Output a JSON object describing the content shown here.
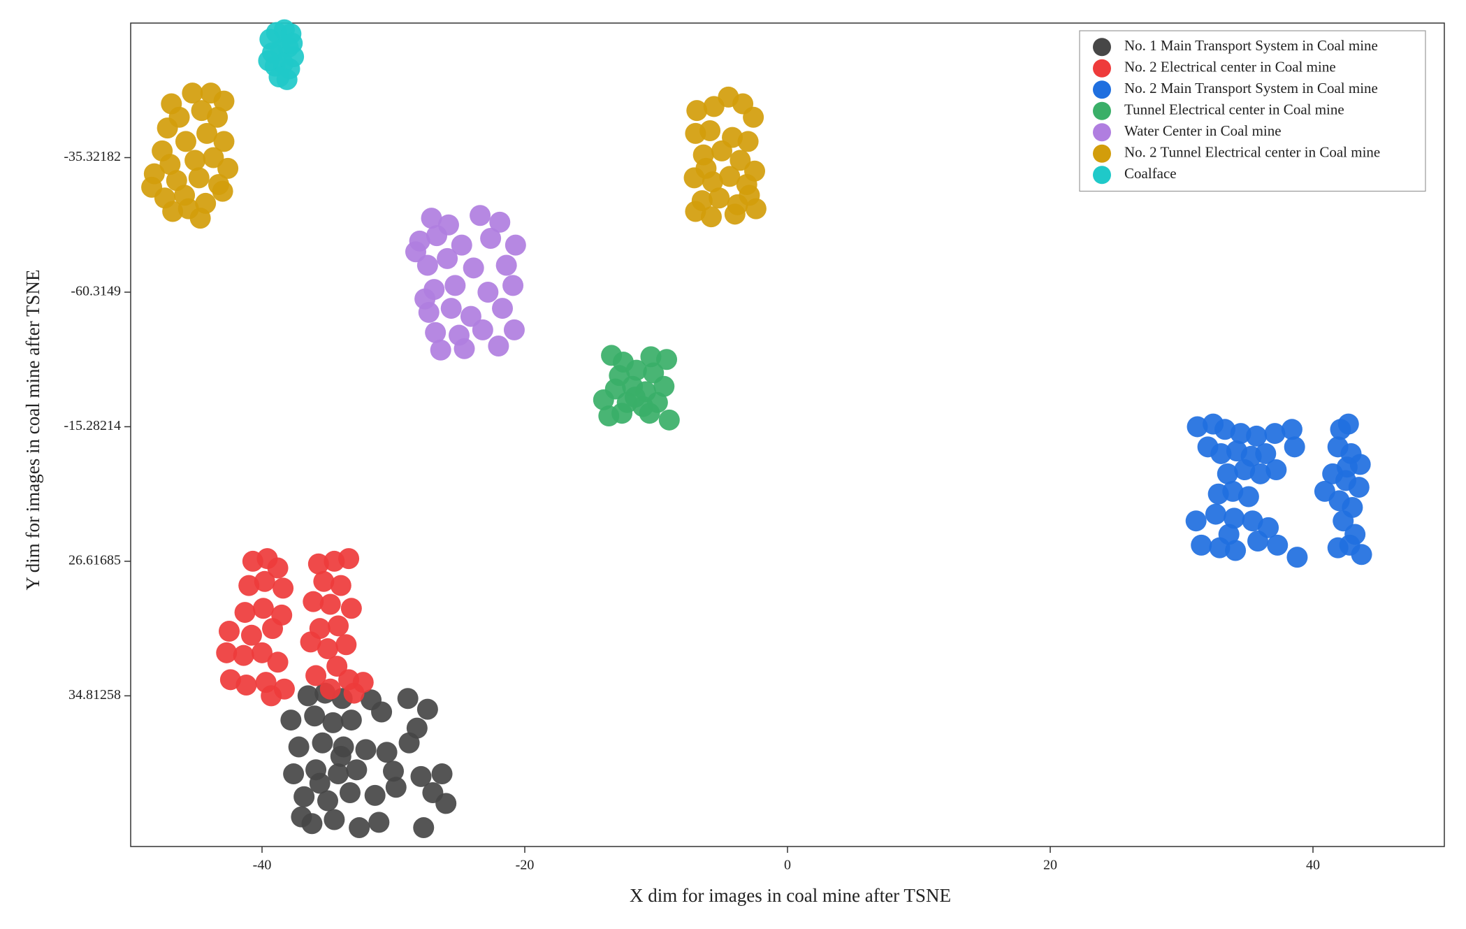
{
  "chart_data": {
    "type": "scatter",
    "xlabel": "X dim for images in  coal mine after TSNE",
    "ylabel": "Y dim for images in  coal mine after TSNE",
    "xlim": [
      -50,
      50
    ],
    "xticks": [
      -40,
      -20,
      0,
      20,
      40
    ],
    "ylim": [
      -0.12,
      6
    ],
    "yticks": [
      {
        "value": 1,
        "label": "34.81258"
      },
      {
        "value": 2,
        "label": "26.61685"
      },
      {
        "value": 3,
        "label": "-15.28214"
      },
      {
        "value": 4,
        "label": "-60.3149"
      },
      {
        "value": 5,
        "label": "-35.32182"
      }
    ],
    "legend": "upper right",
    "series": [
      {
        "name": "No. 1 Main Transport System in Coal mine",
        "color": "#474747",
        "x": [
          -36.5,
          -35.2,
          -33.9,
          -31.7,
          -28.9,
          -27.4,
          -37.8,
          -36.0,
          -34.6,
          -33.2,
          -30.9,
          -28.2,
          -37.2,
          -35.4,
          -33.8,
          -32.1,
          -30.5,
          -28.8,
          -37.6,
          -35.9,
          -34.2,
          -32.8,
          -30.0,
          -27.9,
          -26.3,
          -36.8,
          -35.0,
          -33.3,
          -31.4,
          -29.8,
          -27.0,
          -26.0,
          -36.2,
          -34.5,
          -32.6,
          -31.1,
          -27.7,
          -37.0,
          -35.6,
          -34.0
        ],
        "values": [
          1.0,
          1.02,
          0.98,
          0.97,
          0.98,
          0.9,
          0.82,
          0.85,
          0.8,
          0.82,
          0.88,
          0.76,
          0.62,
          0.65,
          0.62,
          0.6,
          0.58,
          0.65,
          0.42,
          0.45,
          0.42,
          0.45,
          0.44,
          0.4,
          0.42,
          0.25,
          0.22,
          0.28,
          0.26,
          0.32,
          0.28,
          0.2,
          0.05,
          0.08,
          0.02,
          0.06,
          0.02,
          0.1,
          0.35,
          0.55
        ]
      },
      {
        "name": "No. 2 Electrical center in Coal mine",
        "color": "#ee3b3b",
        "x": [
          -40.7,
          -39.6,
          -38.8,
          -41.0,
          -39.8,
          -38.4,
          -41.3,
          -39.9,
          -38.5,
          -42.5,
          -40.8,
          -39.2,
          -42.7,
          -41.4,
          -40.0,
          -38.8,
          -42.4,
          -41.2,
          -39.7,
          -39.3,
          -38.3,
          -35.7,
          -34.5,
          -33.4,
          -35.3,
          -34.0,
          -36.1,
          -34.8,
          -33.2,
          -35.6,
          -34.2,
          -36.3,
          -35.0,
          -33.6,
          -34.3,
          -35.9,
          -33.4,
          -34.8,
          -33.0,
          -32.3
        ],
        "values": [
          2.0,
          2.02,
          1.95,
          1.82,
          1.85,
          1.8,
          1.62,
          1.65,
          1.6,
          1.48,
          1.45,
          1.5,
          1.32,
          1.3,
          1.32,
          1.25,
          1.12,
          1.08,
          1.1,
          1.0,
          1.05,
          1.98,
          2.0,
          2.02,
          1.85,
          1.82,
          1.7,
          1.68,
          1.65,
          1.5,
          1.52,
          1.4,
          1.35,
          1.38,
          1.22,
          1.15,
          1.12,
          1.05,
          1.02,
          1.1
        ]
      },
      {
        "name": "No. 2 Main Transport System in Coal mine",
        "color": "#1f6fdf",
        "x": [
          31.2,
          32.4,
          33.3,
          34.5,
          35.7,
          37.1,
          38.4,
          32.0,
          33.0,
          34.2,
          35.3,
          36.4,
          38.6,
          33.5,
          34.8,
          36.0,
          37.2,
          32.8,
          33.9,
          35.1,
          31.1,
          32.6,
          34.0,
          35.4,
          36.6,
          31.5,
          32.9,
          34.1,
          35.8,
          37.3,
          38.8,
          33.6,
          42.1,
          42.7,
          41.9,
          42.9,
          43.6,
          41.5,
          42.5,
          43.5,
          40.9,
          42.0,
          43.0,
          42.3,
          43.2,
          42.8,
          41.9,
          43.7,
          42.6
        ],
        "values": [
          3.0,
          3.02,
          2.98,
          2.95,
          2.93,
          2.95,
          2.98,
          2.85,
          2.8,
          2.82,
          2.78,
          2.8,
          2.85,
          2.65,
          2.68,
          2.65,
          2.68,
          2.5,
          2.52,
          2.48,
          2.3,
          2.35,
          2.32,
          2.3,
          2.25,
          2.12,
          2.1,
          2.08,
          2.15,
          2.12,
          2.03,
          2.2,
          2.98,
          3.02,
          2.85,
          2.8,
          2.72,
          2.65,
          2.6,
          2.55,
          2.52,
          2.45,
          2.4,
          2.3,
          2.2,
          2.12,
          2.1,
          2.05,
          2.7
        ]
      },
      {
        "name": "Tunnel Electrical center in Coal mine",
        "color": "#3aaf68",
        "x": [
          -13.4,
          -12.5,
          -10.4,
          -9.2,
          -12.8,
          -11.5,
          -10.2,
          -13.1,
          -11.8,
          -10.8,
          -9.4,
          -14.0,
          -12.2,
          -11.0,
          -9.9,
          -13.6,
          -12.6,
          -10.5,
          -9.0,
          -11.6
        ],
        "values": [
          3.53,
          3.48,
          3.52,
          3.5,
          3.38,
          3.42,
          3.4,
          3.28,
          3.3,
          3.26,
          3.3,
          3.2,
          3.18,
          3.15,
          3.18,
          3.08,
          3.1,
          3.1,
          3.05,
          3.22
        ]
      },
      {
        "name": "Water Center in Coal mine",
        "color": "#b07ee0",
        "x": [
          -27.1,
          -25.8,
          -23.4,
          -21.9,
          -28.0,
          -26.7,
          -24.8,
          -22.6,
          -20.7,
          -27.4,
          -25.9,
          -23.9,
          -21.4,
          -26.9,
          -25.3,
          -22.8,
          -20.9,
          -27.3,
          -25.6,
          -24.1,
          -21.7,
          -26.8,
          -25.0,
          -23.2,
          -20.8,
          -26.4,
          -24.6,
          -22.0,
          -28.3,
          -27.6
        ],
        "values": [
          4.55,
          4.5,
          4.57,
          4.52,
          4.38,
          4.42,
          4.35,
          4.4,
          4.35,
          4.2,
          4.25,
          4.18,
          4.2,
          4.02,
          4.05,
          4.0,
          4.05,
          3.85,
          3.88,
          3.82,
          3.88,
          3.7,
          3.68,
          3.72,
          3.72,
          3.57,
          3.58,
          3.6,
          4.3,
          3.95
        ]
      },
      {
        "name": "No. 2 Tunnel Electrical center in Coal mine",
        "color": "#d29d0b",
        "x": [
          -46.9,
          -45.3,
          -43.9,
          -42.9,
          -47.2,
          -46.3,
          -44.6,
          -43.4,
          -47.6,
          -45.8,
          -44.2,
          -42.9,
          -47.0,
          -45.1,
          -43.7,
          -42.6,
          -48.2,
          -46.5,
          -44.8,
          -43.3,
          -47.4,
          -45.9,
          -44.3,
          -43.0,
          -46.8,
          -44.7,
          -48.4,
          -45.6,
          -6.9,
          -5.6,
          -4.5,
          -3.4,
          -2.6,
          -7.0,
          -5.9,
          -4.2,
          -3.0,
          -6.4,
          -5.0,
          -3.6,
          -2.5,
          -7.1,
          -5.7,
          -4.4,
          -3.1,
          -6.5,
          -5.2,
          -3.8,
          -2.4,
          -7.0,
          -5.8,
          -4.0,
          -2.9,
          -6.2
        ],
        "values": [
          5.4,
          5.48,
          5.48,
          5.42,
          5.22,
          5.3,
          5.35,
          5.3,
          5.05,
          5.12,
          5.18,
          5.12,
          4.95,
          4.98,
          5.0,
          4.92,
          4.88,
          4.83,
          4.85,
          4.8,
          4.7,
          4.72,
          4.66,
          4.75,
          4.6,
          4.55,
          4.78,
          4.62,
          5.35,
          5.38,
          5.45,
          5.4,
          5.3,
          5.18,
          5.2,
          5.15,
          5.12,
          5.02,
          5.05,
          4.98,
          4.9,
          4.85,
          4.82,
          4.86,
          4.8,
          4.68,
          4.7,
          4.65,
          4.62,
          4.6,
          4.56,
          4.58,
          4.72,
          4.92
        ]
      },
      {
        "name": "Coalface",
        "color": "#1fc9c9",
        "x": [
          -39.4,
          -38.9,
          -38.3,
          -37.8,
          -39.2,
          -38.6,
          -38.0,
          -37.6,
          -39.0,
          -38.4,
          -37.9,
          -38.7,
          -38.1,
          -39.5,
          -37.7
        ],
        "values": [
          5.88,
          5.93,
          5.95,
          5.92,
          5.78,
          5.8,
          5.82,
          5.75,
          5.68,
          5.7,
          5.66,
          5.6,
          5.58,
          5.72,
          5.85
        ]
      }
    ]
  }
}
